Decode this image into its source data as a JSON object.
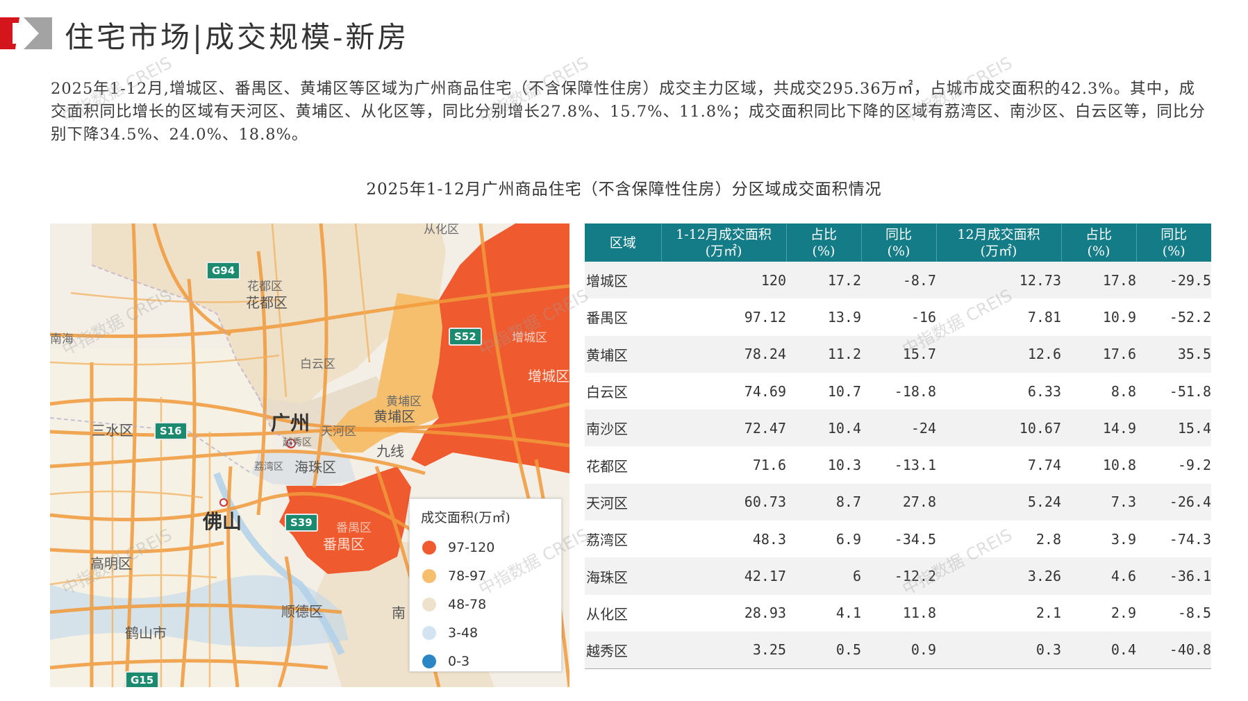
{
  "header": {
    "title": "住宅市场|成交规模-新房"
  },
  "intro": {
    "text": "2025年1-12月,增城区、番禺区、黄埔区等区域为广州商品住宅（不含保障性住房）成交主力区域，共成交295.36万㎡，占城市成交面积的42.3%。其中，成交面积同比增长的区域有天河区、黄埔区、从化区等，同比分别增长27.8%、15.7%、11.8%；成交面积同比下降的区域有荔湾区、南沙区、白云区等，同比分别下降34.5%、24.0%、18.8%。"
  },
  "chart_title": "2025年1-12月广州商品住宅（不含保障性住房）分区域成交面积情况",
  "map": {
    "labels": {
      "conghua": "从化区",
      "huadu1": "花都区",
      "huadu2": "花都区",
      "zengcheng_top": "增城区",
      "zengcheng": "增城区",
      "baiyun": "白云区",
      "guangzhou": "广州",
      "tianhe": "天河区",
      "yuexiu": "越秀区",
      "huangpu1": "黄埔区",
      "huangpu2": "黄埔区",
      "jiulong": "九线",
      "liwan": "荔湾区",
      "haizhu": "海珠区",
      "sanshui": "三水区",
      "foshan": "佛山",
      "panyu1": "番禺区",
      "panyu2": "番禺区",
      "gaoming": "高明区",
      "shunde": "顺德区",
      "heshan": "鹤山市",
      "nan": "南",
      "left_edge": "南海"
    },
    "shields": [
      "G94",
      "S52",
      "S16",
      "S39",
      "G15"
    ]
  },
  "legend": {
    "title": "成交面积(万㎡)",
    "items": [
      {
        "label": "97-120",
        "color": "#ef5a2e"
      },
      {
        "label": "78-97",
        "color": "#f6bf6e"
      },
      {
        "label": "48-78",
        "color": "#efe2cc"
      },
      {
        "label": "3-48",
        "color": "#d4e3f1"
      },
      {
        "label": "0-3",
        "color": "#2b86c5"
      }
    ]
  },
  "table": {
    "headers": [
      [
        "区域"
      ],
      [
        "1-12月成交面积",
        "(万㎡)"
      ],
      [
        "占比",
        "(%)"
      ],
      [
        "同比",
        "(%)"
      ],
      [
        "12月成交面积",
        "(万㎡)"
      ],
      [
        "占比",
        "(%)"
      ],
      [
        "同比",
        "(%)"
      ]
    ],
    "rows": [
      [
        "增城区",
        "120",
        "17.2",
        "-8.7",
        "12.73",
        "17.8",
        "-29.5"
      ],
      [
        "番禺区",
        "97.12",
        "13.9",
        "-16",
        "7.81",
        "10.9",
        "-52.2"
      ],
      [
        "黄埔区",
        "78.24",
        "11.2",
        "15.7",
        "12.6",
        "17.6",
        "35.5"
      ],
      [
        "白云区",
        "74.69",
        "10.7",
        "-18.8",
        "6.33",
        "8.8",
        "-51.8"
      ],
      [
        "南沙区",
        "72.47",
        "10.4",
        "-24",
        "10.67",
        "14.9",
        "15.4"
      ],
      [
        "花都区",
        "71.6",
        "10.3",
        "-13.1",
        "7.74",
        "10.8",
        "-9.2"
      ],
      [
        "天河区",
        "60.73",
        "8.7",
        "27.8",
        "5.24",
        "7.3",
        "-26.4"
      ],
      [
        "荔湾区",
        "48.3",
        "6.9",
        "-34.5",
        "2.8",
        "3.9",
        "-74.3"
      ],
      [
        "海珠区",
        "42.17",
        "6",
        "-12.2",
        "3.26",
        "4.6",
        "-36.1"
      ],
      [
        "从化区",
        "28.93",
        "4.1",
        "11.8",
        "2.1",
        "2.9",
        "-8.5"
      ],
      [
        "越秀区",
        "3.25",
        "0.5",
        "0.9",
        "0.3",
        "0.4",
        "-40.8"
      ]
    ]
  },
  "watermark": "中指数据 CREIS",
  "colors": {
    "header_teal": "#137c87",
    "corner_red": "#d4151c",
    "corner_gray": "#9e9e9e"
  }
}
